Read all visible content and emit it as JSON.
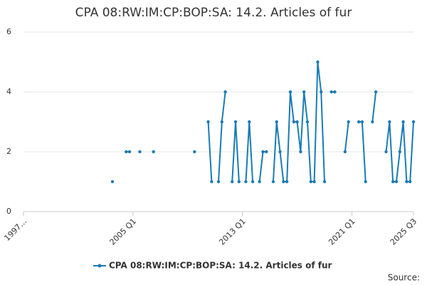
{
  "chart_data": {
    "type": "line",
    "title": "CPA 08:RW:IM:CP:BOP:SA: 14.2. Articles of fur",
    "source": "Source:",
    "categories": [
      "1997…",
      null,
      null,
      null,
      null,
      null,
      null,
      null,
      null,
      null,
      null,
      null,
      null,
      null,
      null,
      null,
      null,
      null,
      null,
      null,
      null,
      null,
      null,
      null,
      null,
      null,
      null,
      null,
      null,
      null,
      null,
      null,
      "2005 Q1",
      null,
      null,
      null,
      null,
      null,
      null,
      null,
      null,
      null,
      null,
      null,
      null,
      null,
      null,
      null,
      null,
      null,
      null,
      null,
      null,
      null,
      null,
      null,
      null,
      null,
      null,
      null,
      null,
      null,
      null,
      null,
      "2013 Q1",
      null,
      null,
      null,
      null,
      null,
      null,
      null,
      null,
      null,
      null,
      null,
      null,
      null,
      null,
      null,
      null,
      null,
      null,
      null,
      null,
      null,
      null,
      null,
      null,
      null,
      null,
      null,
      null,
      null,
      null,
      null,
      "2021 Q1",
      null,
      null,
      null,
      null,
      null,
      null,
      null,
      null,
      null,
      null,
      null,
      null,
      null,
      null,
      null,
      null,
      null,
      "2025 Q3"
    ],
    "series": [
      {
        "name": "CPA 08:RW:IM:CP:BOP:SA: 14.2. Articles of fur",
        "color": "#1a7bb5",
        "values": [
          null,
          null,
          null,
          null,
          null,
          null,
          null,
          null,
          null,
          null,
          null,
          null,
          null,
          null,
          null,
          null,
          null,
          null,
          null,
          null,
          null,
          null,
          null,
          null,
          null,
          null,
          1,
          null,
          null,
          null,
          2,
          2,
          null,
          null,
          2,
          null,
          null,
          null,
          2,
          null,
          null,
          null,
          null,
          null,
          null,
          null,
          null,
          null,
          null,
          null,
          2,
          null,
          null,
          null,
          3,
          1,
          null,
          1,
          3,
          4,
          null,
          1,
          3,
          1,
          null,
          1,
          3,
          1,
          null,
          1,
          2,
          2,
          null,
          1,
          3,
          2,
          1,
          1,
          4,
          3,
          3,
          2,
          4,
          3,
          1,
          1,
          5,
          4,
          1,
          null,
          4,
          4,
          null,
          null,
          2,
          3,
          null,
          null,
          3,
          3,
          1,
          null,
          3,
          4,
          null,
          null,
          2,
          3,
          1,
          1,
          2,
          3,
          1,
          1,
          3
        ]
      }
    ],
    "ylim": [
      0,
      6
    ],
    "yticks": [
      0,
      2,
      4,
      6
    ],
    "grid": true
  }
}
